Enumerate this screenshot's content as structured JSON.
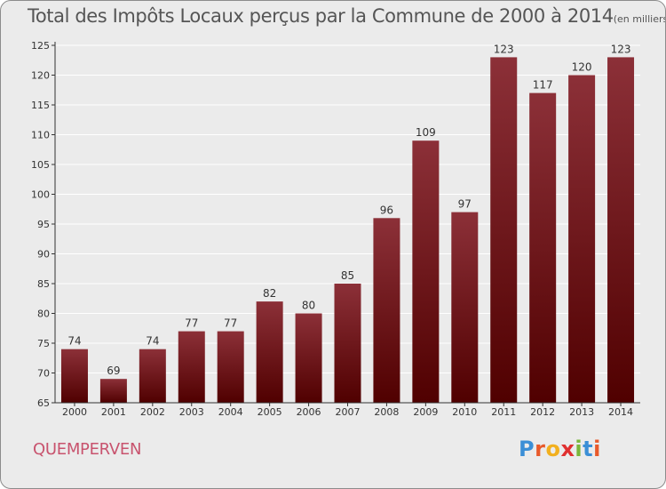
{
  "title": "Total des Impôts Locaux perçus par la Commune de 2000 à 2014",
  "subtitle": "(en milliers d'€)",
  "commune": "QUEMPERVEN",
  "brand": {
    "letters": [
      "P",
      "r",
      "o",
      "x",
      "i",
      "t",
      "i"
    ],
    "colors": [
      "#3b8fd6",
      "#e85a2b",
      "#f2b01e",
      "#e03030",
      "#7ab73a",
      "#3b8fd6",
      "#e85a2b"
    ]
  },
  "colors": {
    "bar_top": "#8c3038",
    "bar_bottom": "#500000",
    "grid": "#ffffff",
    "axis": "#333333",
    "text": "#333333"
  },
  "chart_data": {
    "type": "bar",
    "title": "Total des Impôts Locaux perçus par la Commune de 2000 à 2014",
    "xlabel": "",
    "ylabel": "",
    "categories": [
      "2000",
      "2001",
      "2002",
      "2003",
      "2004",
      "2005",
      "2006",
      "2007",
      "2008",
      "2009",
      "2010",
      "2011",
      "2012",
      "2013",
      "2014"
    ],
    "values": [
      74,
      69,
      74,
      77,
      77,
      82,
      80,
      85,
      96,
      109,
      97,
      123,
      117,
      120,
      123
    ],
    "ylim": [
      65,
      125
    ],
    "yticks": [
      65,
      70,
      75,
      80,
      85,
      90,
      95,
      100,
      105,
      110,
      115,
      120,
      125
    ],
    "grid": true
  }
}
